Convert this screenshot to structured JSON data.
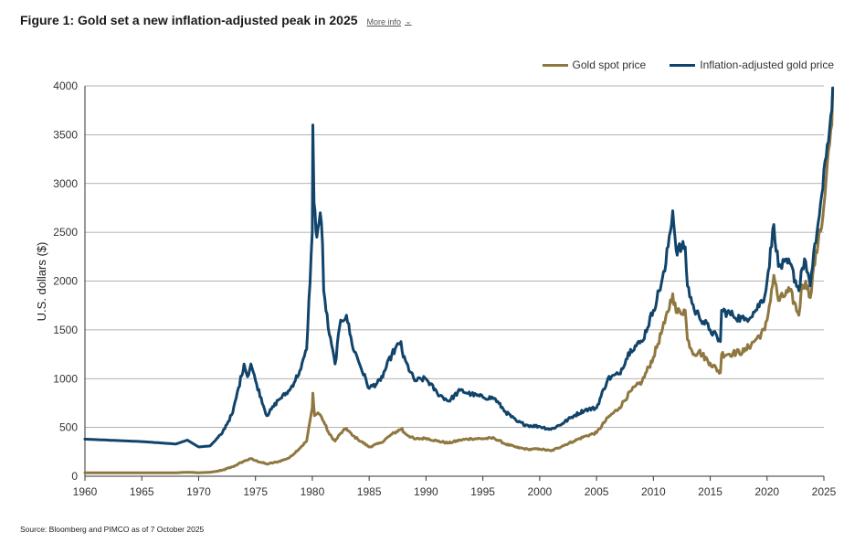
{
  "header": {
    "title": "Figure 1: Gold set a new inflation-adjusted peak in 2025",
    "more_info": "More info"
  },
  "source": "Source: Bloomberg and PIMCO as of 7 October 2025",
  "colors": {
    "gold": "#8f7740",
    "inflation": "#11446b",
    "grid": "#9a9a9a",
    "axis": "#333333"
  },
  "chart_data": {
    "type": "line",
    "title": "Figure 1: Gold set a new inflation-adjusted peak in 2025",
    "xlabel": "",
    "ylabel": "U.S. dollars ($)",
    "xlim": [
      1960,
      2025
    ],
    "ylim": [
      0,
      4000
    ],
    "xticks": [
      1960,
      1965,
      1970,
      1975,
      1980,
      1985,
      1990,
      1995,
      2000,
      2005,
      2010,
      2015,
      2020,
      2025
    ],
    "yticks": [
      0,
      500,
      1000,
      1500,
      2000,
      2500,
      3000,
      3500,
      4000
    ],
    "grid": "horizontal",
    "legend_position": "top-right",
    "series": [
      {
        "name": "Gold spot price",
        "color": "#8f7740",
        "points": [
          [
            1960,
            35
          ],
          [
            1968,
            35
          ],
          [
            1969,
            41
          ],
          [
            1970,
            36
          ],
          [
            1971,
            40
          ],
          [
            1972,
            58
          ],
          [
            1973,
            97
          ],
          [
            1974,
            155
          ],
          [
            1974.6,
            180
          ],
          [
            1975,
            160
          ],
          [
            1976,
            125
          ],
          [
            1977,
            148
          ],
          [
            1978,
            190
          ],
          [
            1979,
            300
          ],
          [
            1979.5,
            360
          ],
          [
            1980,
            700
          ],
          [
            1980.05,
            850
          ],
          [
            1980.2,
            620
          ],
          [
            1980.5,
            650
          ],
          [
            1980.8,
            610
          ],
          [
            1981,
            560
          ],
          [
            1981.5,
            430
          ],
          [
            1982,
            360
          ],
          [
            1982.5,
            440
          ],
          [
            1983,
            490
          ],
          [
            1983.5,
            420
          ],
          [
            1984,
            380
          ],
          [
            1985,
            300
          ],
          [
            1986,
            340
          ],
          [
            1987,
            430
          ],
          [
            1987.9,
            490
          ],
          [
            1988,
            450
          ],
          [
            1989,
            380
          ],
          [
            1990,
            390
          ],
          [
            1991,
            360
          ],
          [
            1992,
            340
          ],
          [
            1993,
            370
          ],
          [
            1994,
            385
          ],
          [
            1995,
            385
          ],
          [
            1996,
            390
          ],
          [
            1997,
            330
          ],
          [
            1998,
            295
          ],
          [
            1999,
            275
          ],
          [
            2000,
            280
          ],
          [
            2001,
            260
          ],
          [
            2002,
            310
          ],
          [
            2003,
            360
          ],
          [
            2004,
            410
          ],
          [
            2005,
            445
          ],
          [
            2006,
            600
          ],
          [
            2007,
            700
          ],
          [
            2008,
            870
          ],
          [
            2009,
            970
          ],
          [
            2010,
            1220
          ],
          [
            2011,
            1570
          ],
          [
            2011.7,
            1870
          ],
          [
            2012,
            1680
          ],
          [
            2012.8,
            1700
          ],
          [
            2013,
            1400
          ],
          [
            2013.6,
            1250
          ],
          [
            2014,
            1280
          ],
          [
            2015,
            1160
          ],
          [
            2015.9,
            1060
          ],
          [
            2016,
            1250
          ],
          [
            2017,
            1260
          ],
          [
            2018,
            1280
          ],
          [
            2019,
            1400
          ],
          [
            2019.8,
            1500
          ],
          [
            2020,
            1600
          ],
          [
            2020.6,
            2060
          ],
          [
            2021,
            1800
          ],
          [
            2022,
            1900
          ],
          [
            2022.8,
            1650
          ],
          [
            2023,
            1900
          ],
          [
            2023.4,
            2000
          ],
          [
            2023.8,
            1830
          ],
          [
            2024,
            2050
          ],
          [
            2024.5,
            2400
          ],
          [
            2024.9,
            2650
          ],
          [
            2025.3,
            3200
          ],
          [
            2025.7,
            3600
          ],
          [
            2025.77,
            3950
          ]
        ]
      },
      {
        "name": "Inflation-adjusted gold price",
        "color": "#11446b",
        "points": [
          [
            1960,
            380
          ],
          [
            1962,
            370
          ],
          [
            1965,
            355
          ],
          [
            1968,
            330
          ],
          [
            1969,
            370
          ],
          [
            1970,
            300
          ],
          [
            1971,
            310
          ],
          [
            1972,
            430
          ],
          [
            1973,
            650
          ],
          [
            1974,
            1150
          ],
          [
            1974.3,
            1020
          ],
          [
            1974.6,
            1150
          ],
          [
            1975,
            980
          ],
          [
            1976,
            620
          ],
          [
            1977,
            780
          ],
          [
            1978,
            880
          ],
          [
            1979,
            1100
          ],
          [
            1979.5,
            1300
          ],
          [
            1980,
            2500
          ],
          [
            1980.05,
            3600
          ],
          [
            1980.15,
            2800
          ],
          [
            1980.4,
            2450
          ],
          [
            1980.7,
            2700
          ],
          [
            1980.9,
            2380
          ],
          [
            1981,
            1900
          ],
          [
            1981.5,
            1450
          ],
          [
            1982,
            1150
          ],
          [
            1982.5,
            1600
          ],
          [
            1983,
            1650
          ],
          [
            1983.5,
            1350
          ],
          [
            1984,
            1200
          ],
          [
            1985,
            900
          ],
          [
            1986,
            980
          ],
          [
            1987,
            1250
          ],
          [
            1987.8,
            1380
          ],
          [
            1988,
            1220
          ],
          [
            1989,
            980
          ],
          [
            1990,
            1000
          ],
          [
            1991,
            850
          ],
          [
            1992,
            770
          ],
          [
            1993,
            880
          ],
          [
            1994,
            840
          ],
          [
            1995,
            810
          ],
          [
            1996,
            800
          ],
          [
            1997,
            660
          ],
          [
            1998,
            560
          ],
          [
            1999,
            520
          ],
          [
            2000,
            510
          ],
          [
            2001,
            480
          ],
          [
            2002,
            540
          ],
          [
            2003,
            620
          ],
          [
            2004,
            680
          ],
          [
            2005,
            700
          ],
          [
            2006,
            1000
          ],
          [
            2007,
            1050
          ],
          [
            2008,
            1300
          ],
          [
            2009,
            1380
          ],
          [
            2010,
            1700
          ],
          [
            2011,
            2100
          ],
          [
            2011.7,
            2720
          ],
          [
            2012,
            2320
          ],
          [
            2012.8,
            2350
          ],
          [
            2013,
            1950
          ],
          [
            2013.6,
            1700
          ],
          [
            2014,
            1650
          ],
          [
            2015,
            1500
          ],
          [
            2015.9,
            1380
          ],
          [
            2016,
            1700
          ],
          [
            2017,
            1650
          ],
          [
            2018,
            1600
          ],
          [
            2019,
            1700
          ],
          [
            2019.8,
            1850
          ],
          [
            2020,
            2000
          ],
          [
            2020.6,
            2580
          ],
          [
            2021,
            2150
          ],
          [
            2022,
            2180
          ],
          [
            2022.8,
            1900
          ],
          [
            2023,
            2100
          ],
          [
            2023.4,
            2200
          ],
          [
            2023.8,
            1950
          ],
          [
            2024,
            2150
          ],
          [
            2024.5,
            2600
          ],
          [
            2024.9,
            2950
          ],
          [
            2025.3,
            3400
          ],
          [
            2025.7,
            3750
          ],
          [
            2025.77,
            3980
          ]
        ]
      }
    ]
  }
}
